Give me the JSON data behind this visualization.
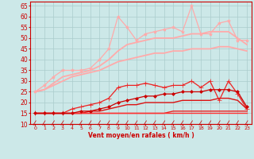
{
  "xlabel": "Vent moyen/en rafales ( km/h )",
  "background_color": "#cce8e8",
  "grid_color": "#aacccc",
  "x": [
    0,
    1,
    2,
    3,
    4,
    5,
    6,
    7,
    8,
    9,
    10,
    11,
    12,
    13,
    14,
    15,
    16,
    17,
    18,
    19,
    20,
    21,
    22,
    23
  ],
  "ylim": [
    10,
    67
  ],
  "yticks": [
    10,
    15,
    20,
    25,
    30,
    35,
    40,
    45,
    50,
    55,
    60,
    65
  ],
  "line_configs": [
    {
      "values": [
        25,
        28,
        32,
        35,
        35,
        35,
        36,
        40,
        45,
        60,
        55,
        49,
        52,
        53,
        54,
        55,
        53,
        65,
        52,
        52,
        57,
        58,
        49,
        49
      ],
      "color": "#ffaaaa",
      "marker": "*",
      "markersize": 3,
      "linewidth": 0.9
    },
    {
      "values": [
        25,
        26,
        29,
        32,
        33,
        34,
        35,
        37,
        40,
        44,
        47,
        48,
        49,
        50,
        50,
        50,
        51,
        52,
        52,
        53,
        53,
        53,
        50,
        47
      ],
      "color": "#ffaaaa",
      "marker": null,
      "markersize": 0,
      "linewidth": 1.3
    },
    {
      "values": [
        25,
        26,
        28,
        30,
        32,
        33,
        34,
        35,
        37,
        39,
        40,
        41,
        42,
        43,
        43,
        44,
        44,
        45,
        45,
        45,
        46,
        46,
        45,
        44
      ],
      "color": "#ffaaaa",
      "marker": null,
      "markersize": 0,
      "linewidth": 1.3
    },
    {
      "values": [
        15,
        15,
        15,
        15,
        17,
        18,
        19,
        20,
        22,
        27,
        28,
        28,
        29,
        28,
        27,
        28,
        28,
        30,
        27,
        30,
        21,
        30,
        24,
        17
      ],
      "color": "#ee2222",
      "marker": "+",
      "markersize": 4,
      "linewidth": 0.9
    },
    {
      "values": [
        15,
        15,
        15,
        15,
        15,
        16,
        16,
        17,
        18,
        20,
        21,
        22,
        23,
        23,
        24,
        24,
        25,
        25,
        25,
        26,
        26,
        26,
        25,
        18
      ],
      "color": "#cc0000",
      "marker": "D",
      "markersize": 2,
      "linewidth": 0.9
    },
    {
      "values": [
        15,
        15,
        15,
        15,
        15,
        15,
        16,
        16,
        17,
        18,
        19,
        19,
        20,
        20,
        20,
        20,
        21,
        21,
        21,
        21,
        22,
        22,
        21,
        17
      ],
      "color": "#dd1111",
      "marker": null,
      "markersize": 0,
      "linewidth": 1.0
    },
    {
      "values": [
        15,
        15,
        15,
        15,
        15,
        15,
        15,
        15,
        15,
        15,
        15,
        15,
        15,
        15,
        15,
        16,
        16,
        16,
        16,
        16,
        16,
        16,
        16,
        16
      ],
      "color": "#ee2222",
      "marker": null,
      "markersize": 0,
      "linewidth": 1.0
    },
    {
      "values": [
        15,
        15,
        15,
        15,
        15,
        15,
        15,
        15,
        15,
        15,
        15,
        15,
        15,
        15,
        15,
        15,
        15,
        15,
        15,
        15,
        15,
        15,
        15,
        15
      ],
      "color": "#ff3333",
      "marker": null,
      "markersize": 0,
      "linewidth": 1.0
    }
  ],
  "arrow_color": "#cc0000"
}
